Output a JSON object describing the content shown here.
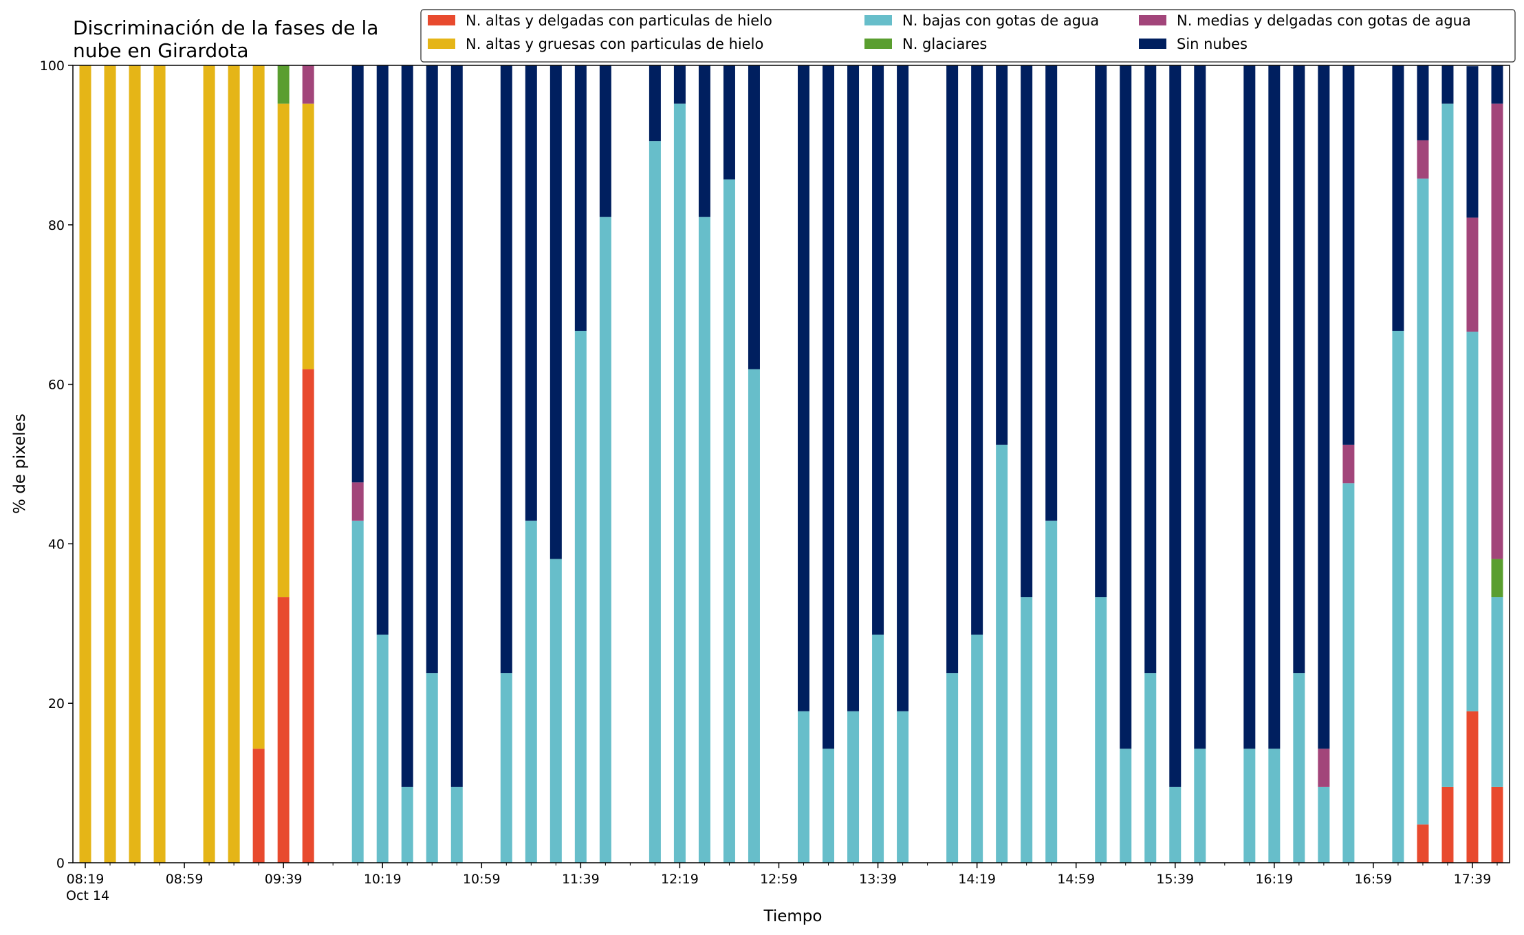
{
  "chart_data": {
    "type": "bar",
    "stacked": true,
    "title": "Discriminación de la fases de la\nnube en Girardota",
    "xlabel": "Tiempo",
    "ylabel": "% de pixeles",
    "ylim": [
      0,
      100
    ],
    "yticks": [
      0,
      20,
      40,
      60,
      80,
      100
    ],
    "xlim": [
      "08:14",
      "17:54"
    ],
    "x_tick_labels": [
      "08:19\nOct 14",
      "08:59",
      "09:39",
      "10:19",
      "10:59",
      "11:39",
      "12:19",
      "12:59",
      "13:39",
      "14:19",
      "14:59",
      "15:39",
      "16:19",
      "16:59",
      "17:39"
    ],
    "x_tick_times": [
      "08:19",
      "08:59",
      "09:39",
      "10:19",
      "10:59",
      "11:39",
      "12:19",
      "12:59",
      "13:39",
      "14:19",
      "14:59",
      "15:39",
      "16:19",
      "16:59",
      "17:39"
    ],
    "grid": false,
    "legend_position": "top-right",
    "times": [
      "08:19",
      "08:29",
      "08:39",
      "08:49",
      "09:09",
      "09:19",
      "09:29",
      "09:39",
      "09:49",
      "10:09",
      "10:19",
      "10:29",
      "10:39",
      "10:49",
      "11:09",
      "11:19",
      "11:29",
      "11:39",
      "11:49",
      "12:09",
      "12:19",
      "12:29",
      "12:39",
      "12:49",
      "13:09",
      "13:19",
      "13:29",
      "13:39",
      "13:49",
      "14:09",
      "14:19",
      "14:29",
      "14:39",
      "14:49",
      "15:09",
      "15:19",
      "15:29",
      "15:39",
      "15:49",
      "16:09",
      "16:19",
      "16:29",
      "16:39",
      "16:49",
      "17:09",
      "17:19",
      "17:29",
      "17:39",
      "17:49"
    ],
    "series": [
      {
        "name": "N. altas y delgadas con particulas de hielo",
        "color": "#E84A2E",
        "values": [
          0,
          0,
          0,
          0,
          0,
          0,
          14.3,
          33.3,
          61.9,
          0,
          0,
          0,
          0,
          0,
          0,
          0,
          0,
          0,
          0,
          0,
          0,
          0,
          0,
          0,
          0,
          0,
          0,
          0,
          0,
          0,
          0,
          0,
          0,
          0,
          0,
          0,
          0,
          0,
          0,
          0,
          0,
          0,
          0,
          0,
          0,
          4.8,
          9.5,
          19.0,
          9.5
        ]
      },
      {
        "name": "N. altas y gruesas con particulas de hielo",
        "color": "#E5B517",
        "values": [
          100,
          100,
          100,
          100,
          100,
          100,
          85.7,
          61.9,
          33.3,
          0,
          0,
          0,
          0,
          0,
          0,
          0,
          0,
          0,
          0,
          0,
          0,
          0,
          0,
          0,
          0,
          0,
          0,
          0,
          0,
          0,
          0,
          0,
          0,
          0,
          0,
          0,
          0,
          0,
          0,
          0,
          0,
          0,
          0,
          0,
          0,
          0,
          0,
          0,
          0
        ]
      },
      {
        "name": "N. bajas con gotas de agua",
        "color": "#67BECA",
        "values": [
          0,
          0,
          0,
          0,
          0,
          0,
          0,
          0,
          0,
          42.9,
          28.6,
          9.5,
          23.8,
          9.5,
          23.8,
          42.9,
          38.1,
          66.7,
          81.0,
          90.5,
          95.2,
          81.0,
          85.7,
          61.9,
          19.0,
          14.3,
          19.0,
          28.6,
          19.0,
          23.8,
          28.6,
          52.4,
          33.3,
          42.9,
          33.3,
          14.3,
          23.8,
          9.5,
          14.3,
          14.3,
          14.3,
          23.8,
          9.5,
          47.6,
          66.7,
          81.0,
          85.7,
          47.6,
          23.8
        ]
      },
      {
        "name": "N. glaciares",
        "color": "#5A9E2F",
        "values": [
          0,
          0,
          0,
          0,
          0,
          0,
          0,
          4.8,
          0,
          0,
          0,
          0,
          0,
          0,
          0,
          0,
          0,
          0,
          0,
          0,
          0,
          0,
          0,
          0,
          0,
          0,
          0,
          0,
          0,
          0,
          0,
          0,
          0,
          0,
          0,
          0,
          0,
          0,
          0,
          0,
          0,
          0,
          0,
          0,
          0,
          0,
          0,
          0,
          4.8
        ]
      },
      {
        "name": "N. medias y delgadas con gotas de agua",
        "color": "#A2457A",
        "values": [
          0,
          0,
          0,
          0,
          0,
          0,
          0,
          0,
          4.8,
          4.8,
          0,
          0,
          0,
          0,
          0,
          0,
          0,
          0,
          0,
          0,
          0,
          0,
          0,
          0,
          0,
          0,
          0,
          0,
          0,
          0,
          0,
          0,
          0,
          0,
          0,
          0,
          0,
          0,
          0,
          0,
          0,
          0,
          4.8,
          4.8,
          0,
          4.8,
          0,
          14.3,
          57.1
        ]
      },
      {
        "name": "Sin nubes",
        "color": "#001F5F",
        "values": [
          0,
          0,
          0,
          0,
          0,
          0,
          0,
          0,
          0,
          52.3,
          71.4,
          90.5,
          76.2,
          90.5,
          76.2,
          57.1,
          61.9,
          33.3,
          19.0,
          9.5,
          4.8,
          19.0,
          14.3,
          38.1,
          81.0,
          85.7,
          81.0,
          71.4,
          81.0,
          76.2,
          71.4,
          47.6,
          66.7,
          57.1,
          66.7,
          85.7,
          76.2,
          90.5,
          85.7,
          85.7,
          85.7,
          76.2,
          85.7,
          47.6,
          33.3,
          9.5,
          4.8,
          19.0,
          4.8
        ]
      }
    ]
  }
}
